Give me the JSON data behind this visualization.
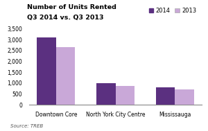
{
  "title_line1": "Number of Units Rented",
  "title_line2": "Q3 2014 vs. Q3 2013",
  "categories": [
    "Downtown Core",
    "North York City Centre",
    "Mississauga"
  ],
  "values_2014": [
    3100,
    1000,
    820
  ],
  "values_2013": [
    2650,
    860,
    700
  ],
  "color_2014": "#5b3080",
  "color_2013": "#c9a8d8",
  "ylim": [
    0,
    3500
  ],
  "yticks": [
    0,
    500,
    1000,
    1500,
    2000,
    2500,
    3000,
    3500
  ],
  "ytick_labels": [
    "0",
    "500",
    "1,000",
    "1,500",
    "2,000",
    "2,500",
    "3,000",
    "3,500"
  ],
  "legend_labels": [
    "2014",
    "2013"
  ],
  "source_text": "Source: TREB",
  "background_color": "#ffffff",
  "title_fontsize": 6.8,
  "axis_fontsize": 5.5,
  "legend_fontsize": 6.0,
  "source_fontsize": 5.0
}
